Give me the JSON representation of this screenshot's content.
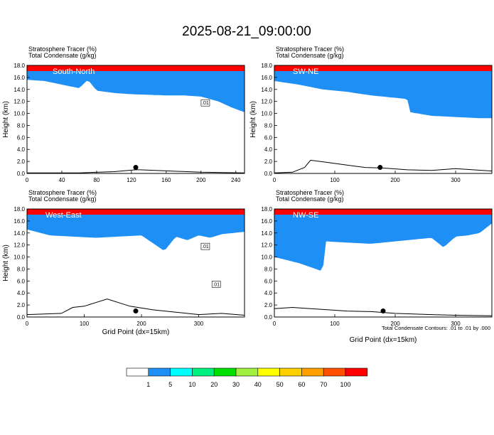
{
  "page_title": "2025-08-21_09:00:00",
  "colors": {
    "bands": [
      "#ffffff",
      "#1e8ff5",
      "#00ffff",
      "#00f080",
      "#00e000",
      "#a0f040",
      "#ffff00",
      "#ffd000",
      "#ffa000",
      "#ff5000",
      "#ff0000"
    ]
  },
  "colorbar": {
    "levels": [
      "1",
      "5",
      "10",
      "20",
      "30",
      "40",
      "50",
      "60",
      "70",
      "100"
    ]
  },
  "footnote": "Total Condensate Contours: .01 to .01 by .000",
  "chart_data": [
    {
      "type": "contour",
      "panel": "top-left",
      "header": [
        "Stratosphere Tracer   (%)",
        "Total Condensate   (g/kg)"
      ],
      "label": "South-North",
      "ylabel": "Height (km)",
      "xlabel": "",
      "xlim": [
        0,
        250
      ],
      "ylim": [
        0,
        18
      ],
      "xticks": [
        "0",
        "40",
        "80",
        "120",
        "160",
        "200",
        "240"
      ],
      "yticks": [
        "0.0",
        "2.0",
        "4.0",
        "6.0",
        "8.0",
        "10.0",
        "12.0",
        "14.0",
        "16.0",
        "18.0"
      ],
      "contour_labels": [
        ".01"
      ],
      "tracer_base_km": {
        "x": [
          0,
          20,
          40,
          60,
          70,
          80,
          100,
          120,
          140,
          160,
          180,
          200,
          220,
          235,
          250
        ],
        "y": [
          15.6,
          15.4,
          14.8,
          14.2,
          15.6,
          13.8,
          13.4,
          13.2,
          13.1,
          13.0,
          13.0,
          12.8,
          12.0,
          11.0,
          10.2
        ]
      },
      "terrain_km": {
        "x": [
          0,
          60,
          100,
          125,
          130,
          200,
          250
        ],
        "y": [
          0.1,
          0.1,
          0.3,
          0.6,
          0.6,
          0.2,
          0.1
        ]
      },
      "marker": {
        "x": 125,
        "y": 1.0
      }
    },
    {
      "type": "contour",
      "panel": "top-right",
      "header": [
        "Stratosphere Tracer   (%)",
        "Total Condensate   (g/kg)"
      ],
      "label": "SW-NE",
      "ylabel": "Height (km)",
      "xlabel": "",
      "xlim": [
        0,
        360
      ],
      "ylim": [
        0,
        18
      ],
      "xticks": [
        "0",
        "100",
        "200",
        "300"
      ],
      "yticks": [
        "0.0",
        "2.0",
        "4.0",
        "6.0",
        "8.0",
        "10.0",
        "12.0",
        "14.0",
        "16.0",
        "18.0"
      ],
      "contour_labels": [],
      "tracer_base_km": {
        "x": [
          0,
          40,
          80,
          120,
          160,
          200,
          220,
          225,
          260,
          300,
          340,
          360
        ],
        "y": [
          15.4,
          14.8,
          14.0,
          13.6,
          13.0,
          12.6,
          12.4,
          10.2,
          9.6,
          9.4,
          9.2,
          9.2
        ]
      },
      "terrain_km": {
        "x": [
          0,
          30,
          50,
          60,
          90,
          120,
          150,
          180,
          220,
          260,
          300,
          360
        ],
        "y": [
          0.1,
          0.2,
          1.0,
          2.2,
          1.8,
          1.4,
          1.0,
          0.9,
          0.6,
          0.5,
          0.8,
          0.4
        ]
      },
      "marker": {
        "x": 175,
        "y": 1.0
      }
    },
    {
      "type": "contour",
      "panel": "bottom-left",
      "header": [
        "Stratosphere Tracer   (%)",
        "Total Condensate   (g/kg)"
      ],
      "label": "West-East",
      "ylabel": "Height (km)",
      "xlabel": "Grid Point (dx=15km)",
      "xlim": [
        0,
        380
      ],
      "ylim": [
        0,
        18
      ],
      "xticks": [
        "0",
        "100",
        "200",
        "300"
      ],
      "yticks": [
        "0.0",
        "2.0",
        "4.0",
        "6.0",
        "8.0",
        "10.0",
        "12.0",
        "14.0",
        "16.0",
        "18.0"
      ],
      "contour_labels": [
        ".01",
        ".01"
      ],
      "tracer_base_km": {
        "x": [
          0,
          40,
          80,
          120,
          160,
          200,
          240,
          260,
          280,
          300,
          320,
          340,
          360,
          380
        ],
        "y": [
          14.6,
          13.6,
          13.4,
          13.2,
          13.4,
          13.6,
          11.0,
          13.4,
          12.8,
          13.6,
          13.2,
          13.8,
          14.0,
          14.2
        ]
      },
      "terrain_km": {
        "x": [
          0,
          60,
          80,
          100,
          140,
          180,
          220,
          260,
          300,
          340,
          380
        ],
        "y": [
          0.4,
          0.6,
          1.6,
          1.8,
          3.0,
          1.8,
          1.2,
          0.8,
          0.4,
          0.6,
          0.3
        ]
      },
      "marker": {
        "x": 190,
        "y": 1.0
      }
    },
    {
      "type": "contour",
      "panel": "bottom-right",
      "header": [
        "Stratosphere Tracer   (%)",
        "Total Condensate   (g/kg)"
      ],
      "label": "NW-SE",
      "ylabel": "",
      "xlabel": "Grid Point (dx=15km)",
      "xlim": [
        0,
        360
      ],
      "ylim": [
        0,
        18
      ],
      "xticks": [
        "0",
        "100",
        "200",
        "300"
      ],
      "yticks": [
        "0.0",
        "2.0",
        "4.0",
        "6.0",
        "8.0",
        "10.0",
        "12.0",
        "14.0",
        "16.0",
        "18.0"
      ],
      "contour_labels": [],
      "tracer_base_km": {
        "x": [
          0,
          40,
          80,
          85,
          120,
          160,
          200,
          240,
          260,
          280,
          300,
          320,
          340,
          360
        ],
        "y": [
          10.0,
          9.0,
          7.6,
          12.6,
          12.4,
          12.2,
          12.6,
          13.0,
          13.2,
          11.6,
          13.4,
          13.6,
          14.0,
          15.6
        ]
      },
      "terrain_km": {
        "x": [
          0,
          30,
          60,
          90,
          120,
          160,
          200,
          260,
          300,
          360
        ],
        "y": [
          1.4,
          1.6,
          1.4,
          1.2,
          1.0,
          0.9,
          0.6,
          0.4,
          0.3,
          0.2
        ]
      },
      "marker": {
        "x": 180,
        "y": 1.0
      }
    }
  ]
}
